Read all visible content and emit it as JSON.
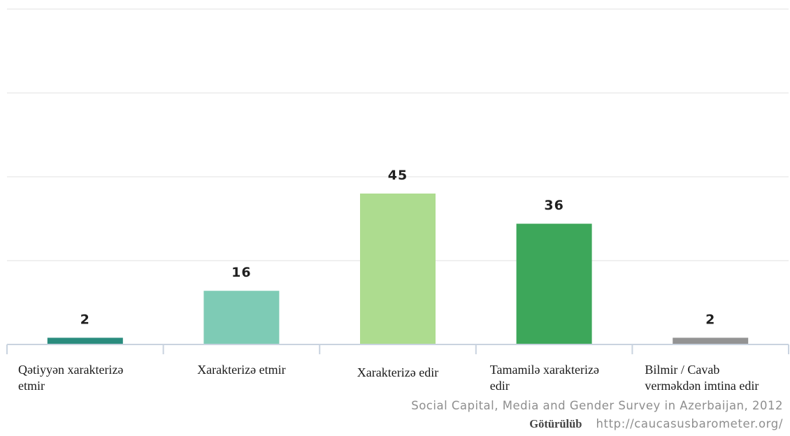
{
  "chart_data": {
    "type": "bar",
    "categories": [
      [
        "Qətiyyən xarakterizə",
        "etmir"
      ],
      [
        "Xarakterizə etmir"
      ],
      [
        "Xarakterizə edir"
      ],
      [
        "Tamamilə xarakterizə",
        "edir"
      ],
      [
        "Bilmir / Cavab",
        "verməkdən imtina edir"
      ]
    ],
    "values": [
      2,
      16,
      45,
      36,
      2
    ],
    "value_labels": [
      "2",
      "16",
      "45",
      "36",
      "2"
    ],
    "colors": [
      "#2a8c7e",
      "#7ecbb5",
      "#addc8f",
      "#3da75a",
      "#939393"
    ],
    "ylim": [
      0,
      100
    ],
    "grid": true
  },
  "source": {
    "text": "Social Capital, Media and Gender Survey in Azerbaijan, 2012",
    "credit_label": "Götürülüb",
    "credit_url": "http://caucasusbarometer.org/"
  }
}
